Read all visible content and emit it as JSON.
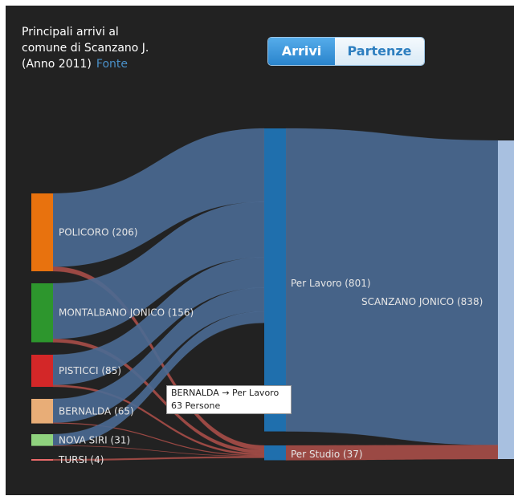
{
  "title": {
    "line1": "Principali arrivi al",
    "line2": "comune di Scanzano J.",
    "line3": "(Anno 2011)",
    "source_link": "Fonte"
  },
  "toggle": {
    "arrivi": "Arrivi",
    "partenze": "Partenze",
    "active": "arrivi"
  },
  "tooltip": {
    "line1": "BERNALDA → Per Lavoro",
    "line2": "63 Persone"
  },
  "colors": {
    "background": "#222222",
    "policoro": "#e8720e",
    "montalbano": "#2d962d",
    "pisticci": "#d32728",
    "bernalda": "#e8ad77",
    "nova_siri": "#8fd27e",
    "tursi": "#e86a6a",
    "per_lavoro": "#1f6fad",
    "per_studio": "#1f6fad",
    "scanzano": "#a8c0e0",
    "link_lavoro": "#4a6a94",
    "link_studio": "#b0504a"
  },
  "chart_data": {
    "type": "sankey",
    "nodes": [
      {
        "id": "policoro",
        "label": "POLICORO (206)",
        "value": 206
      },
      {
        "id": "montalbano",
        "label": "MONTALBANO JONICO (156)",
        "value": 156
      },
      {
        "id": "pisticci",
        "label": "PISTICCI (85)",
        "value": 85
      },
      {
        "id": "bernalda",
        "label": "BERNALDA (65)",
        "value": 65
      },
      {
        "id": "nova_siri",
        "label": "NOVA SIRI (31)",
        "value": 31
      },
      {
        "id": "tursi",
        "label": "TURSI (4)",
        "value": 4
      },
      {
        "id": "per_lavoro",
        "label": "Per Lavoro (801)",
        "value": 801
      },
      {
        "id": "per_studio",
        "label": "Per Studio (37)",
        "value": 37
      },
      {
        "id": "scanzano",
        "label": "SCANZANO JONICO (838)",
        "value": 838
      }
    ],
    "links": [
      {
        "source": "policoro",
        "target": "per_lavoro",
        "value": 194
      },
      {
        "source": "policoro",
        "target": "per_studio",
        "value": 12
      },
      {
        "source": "montalbano",
        "target": "per_lavoro",
        "value": 147
      },
      {
        "source": "montalbano",
        "target": "per_studio",
        "value": 9
      },
      {
        "source": "pisticci",
        "target": "per_lavoro",
        "value": 80
      },
      {
        "source": "pisticci",
        "target": "per_studio",
        "value": 5
      },
      {
        "source": "bernalda",
        "target": "per_lavoro",
        "value": 63
      },
      {
        "source": "bernalda",
        "target": "per_studio",
        "value": 2
      },
      {
        "source": "nova_siri",
        "target": "per_lavoro",
        "value": 30
      },
      {
        "source": "nova_siri",
        "target": "per_studio",
        "value": 1
      },
      {
        "source": "tursi",
        "target": "per_lavoro",
        "value": 0
      },
      {
        "source": "tursi",
        "target": "per_studio",
        "value": 4
      },
      {
        "source": "per_lavoro",
        "target": "scanzano",
        "value": 801
      },
      {
        "source": "per_studio",
        "target": "scanzano",
        "value": 37
      }
    ]
  }
}
